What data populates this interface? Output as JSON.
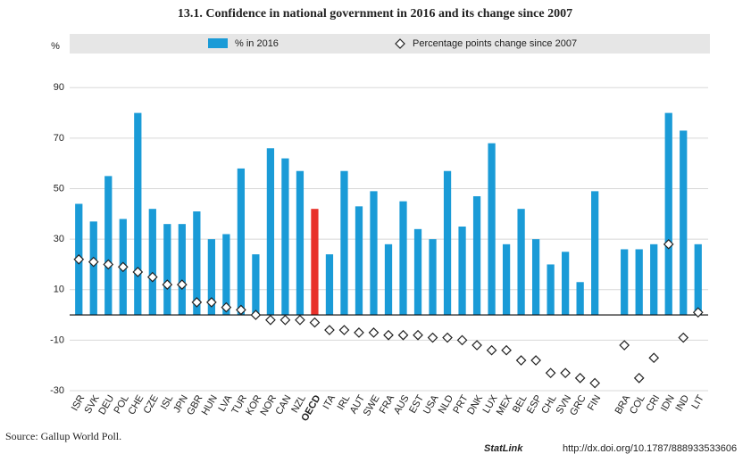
{
  "chart_data": {
    "type": "bar",
    "title": "13.1. Confidence in national government in 2016 and its change since 2007",
    "y_unit": "%",
    "source": "Source: Gallup World Poll.",
    "statlink": "StatLink",
    "link": "http://dx.doi.org/10.1787/888933533606",
    "categories": [
      "ISR",
      "SVK",
      "DEU",
      "POL",
      "CHE",
      "CZE",
      "ISL",
      "JPN",
      "GBR",
      "HUN",
      "LVA",
      "TUR",
      "KOR",
      "NOR",
      "CAN",
      "NZL",
      "OECD",
      "ITA",
      "IRL",
      "AUT",
      "SWE",
      "FRA",
      "AUS",
      "EST",
      "USA",
      "NLD",
      "PRT",
      "DNK",
      "LUX",
      "MEX",
      "BEL",
      "ESP",
      "CHL",
      "SVN",
      "GRC",
      "FIN",
      null,
      "BRA",
      "COL",
      "CRI",
      "IDN",
      "IND",
      "LIT"
    ],
    "series": [
      {
        "name": "% in 2016",
        "type": "bar",
        "color": "#1a9bd7",
        "highlight": "OECD",
        "highlight_color": "#e8312a",
        "values": [
          44,
          37,
          55,
          38,
          80,
          42,
          36,
          36,
          41,
          30,
          32,
          58,
          24,
          66,
          62,
          57,
          42,
          24,
          57,
          43,
          49,
          28,
          45,
          34,
          30,
          57,
          35,
          47,
          68,
          28,
          42,
          30,
          20,
          25,
          13,
          49,
          null,
          26,
          26,
          28,
          80,
          73,
          28
        ]
      },
      {
        "name": "Percentage points change since 2007",
        "type": "diamond",
        "color": "#222222",
        "values": [
          22,
          21,
          20,
          19,
          17,
          15,
          12,
          12,
          5,
          5,
          3,
          2,
          0,
          -2,
          -2,
          -2,
          -3,
          -6,
          -6,
          -7,
          -7,
          -8,
          -8,
          -8,
          -9,
          -9,
          -10,
          -12,
          -14,
          -14,
          -18,
          -18,
          -23,
          -23,
          -25,
          -27,
          null,
          -12,
          -25,
          -17,
          28,
          -9,
          1
        ]
      }
    ],
    "ylim": [
      -30,
      100
    ],
    "yticks": [
      -30,
      -10,
      10,
      30,
      50,
      70,
      90
    ],
    "grid": true
  }
}
